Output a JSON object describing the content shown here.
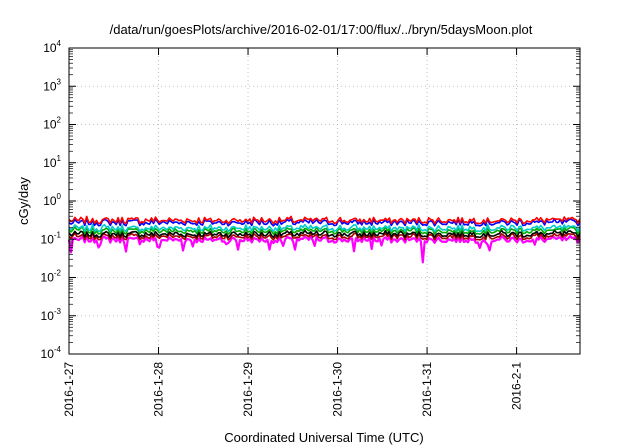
{
  "chart_data": {
    "type": "line",
    "title": "/data/run/goesPlots/archive/2016-02-01/17:00/flux/../bryn/5daysMoon.plot",
    "xlabel": "Coordinated Universal Time (UTC)",
    "ylabel": "cGy/day",
    "y_scale": "log",
    "ylim": [
      0.0001,
      10000
    ],
    "y_ticks": [
      {
        "base": "10",
        "exp": "-4",
        "value": 0.0001
      },
      {
        "base": "10",
        "exp": "-3",
        "value": 0.001
      },
      {
        "base": "10",
        "exp": "-2",
        "value": 0.01
      },
      {
        "base": "10",
        "exp": "-1",
        "value": 0.1
      },
      {
        "base": "10",
        "exp": "0",
        "value": 1
      },
      {
        "base": "10",
        "exp": "1",
        "value": 10
      },
      {
        "base": "10",
        "exp": "2",
        "value": 100
      },
      {
        "base": "10",
        "exp": "3",
        "value": 1000
      },
      {
        "base": "10",
        "exp": "4",
        "value": 10000
      }
    ],
    "xlim": [
      "2016-01-27 00:00",
      "2016-02-01 17:00"
    ],
    "x_ticks": [
      "2016-1-27",
      "2016-1-28",
      "2016-1-29",
      "2016-1-30",
      "2016-1-31",
      "2016-2-1"
    ],
    "grid": true,
    "legend": "none",
    "series": [
      {
        "color": "#ff0000",
        "level": 0.32
      },
      {
        "color": "#0000ff",
        "level": 0.28
      },
      {
        "color": "#00cccc",
        "level": 0.2
      },
      {
        "color": "#00aa00",
        "level": 0.17
      },
      {
        "color": "#000000",
        "level": 0.14
      },
      {
        "color": "#aa0000",
        "level": 0.12
      },
      {
        "color": "#ff00ff",
        "level": 0.1
      }
    ]
  }
}
